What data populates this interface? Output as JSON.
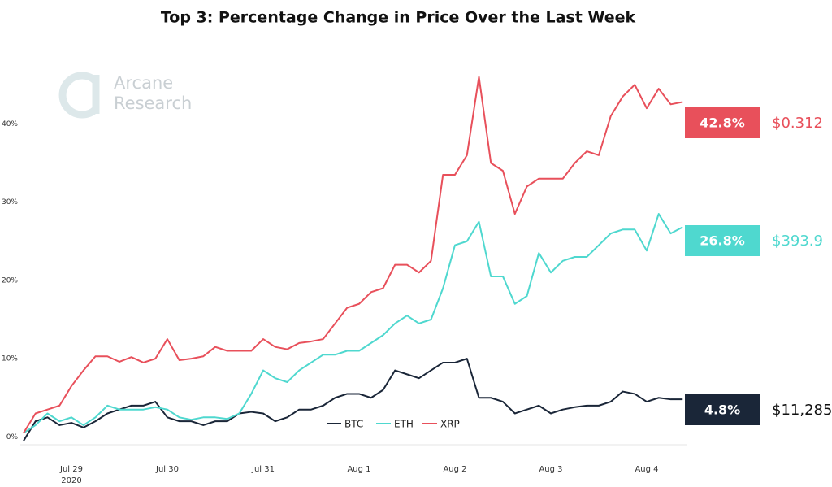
{
  "chart_data": {
    "type": "line",
    "title": "Top 3: Percentage Change in Price Over the Last Week",
    "watermark": [
      "Arcane",
      "Research"
    ],
    "year_label": "2020",
    "categories": [
      null,
      null,
      null,
      null,
      "Jul 29",
      null,
      null,
      null,
      null,
      null,
      null,
      null,
      "Jul 30",
      null,
      null,
      null,
      null,
      null,
      null,
      null,
      "Jul 31",
      null,
      null,
      null,
      null,
      null,
      null,
      null,
      "Aug 1",
      null,
      null,
      null,
      null,
      null,
      null,
      null,
      "Aug 2",
      null,
      null,
      null,
      null,
      null,
      null,
      null,
      "Aug 3",
      null,
      null,
      null,
      null,
      null,
      null,
      null,
      "Aug 4",
      null,
      null,
      null
    ],
    "ylim": [
      -1,
      47
    ],
    "yticks": [
      {
        "value": 0,
        "label": "0%"
      },
      {
        "value": 10,
        "label": "10%"
      },
      {
        "value": 20,
        "label": "20%"
      },
      {
        "value": 30,
        "label": "30%"
      },
      {
        "value": 40,
        "label": "40%"
      }
    ],
    "grid": false,
    "legend": "bottom",
    "series": [
      {
        "name": "BTC",
        "color": "#1a2638",
        "end_label": "4.8%",
        "price": "$11,285",
        "values": [
          -0.5,
          2,
          2.5,
          1.5,
          1.8,
          1.2,
          2,
          3,
          3.5,
          4,
          4,
          4.5,
          2.5,
          2,
          2,
          1.5,
          2,
          2,
          3,
          3.2,
          3,
          2,
          2.5,
          3.5,
          3.5,
          4,
          5,
          5.5,
          5.5,
          5,
          6,
          8.5,
          8,
          7.5,
          8.5,
          9.5,
          9.5,
          10,
          5,
          5,
          4.5,
          3,
          3.5,
          4,
          3,
          3.5,
          3.8,
          4,
          4,
          4.5,
          5.8,
          5.5,
          4.5,
          5,
          4.8,
          4.8
        ]
      },
      {
        "name": "ETH",
        "color": "#4fd8cf",
        "end_label": "26.8%",
        "price": "$393.9",
        "values": [
          0.5,
          1.5,
          3,
          2,
          2.5,
          1.5,
          2.5,
          4,
          3.5,
          3.5,
          3.5,
          3.8,
          3.5,
          2.5,
          2.2,
          2.5,
          2.5,
          2.3,
          3,
          5.5,
          8.5,
          7.5,
          7,
          8.5,
          9.5,
          10.5,
          10.5,
          11,
          11,
          12,
          13,
          14.5,
          15.5,
          14.5,
          15,
          19,
          24.5,
          25,
          27.5,
          20.5,
          20.5,
          17,
          18,
          23.5,
          21,
          22.5,
          23,
          23,
          24.5,
          26,
          26.5,
          26.5,
          23.8,
          28.5,
          26,
          26.8
        ]
      },
      {
        "name": "XRP",
        "color": "#e8505b",
        "end_label": "42.8%",
        "price": "$0.312",
        "values": [
          0.5,
          3,
          3.5,
          4,
          6.5,
          8.5,
          10.3,
          10.3,
          9.6,
          10.2,
          9.5,
          10,
          12.5,
          9.8,
          10,
          10.3,
          11.5,
          11,
          11,
          11,
          12.5,
          11.5,
          11.2,
          12,
          12.2,
          12.5,
          14.5,
          16.5,
          17,
          18.5,
          19,
          22,
          22,
          21,
          22.5,
          33.5,
          33.5,
          36,
          46,
          35,
          34,
          28.5,
          32,
          33,
          33,
          33,
          35,
          36.5,
          36,
          41,
          43.5,
          45,
          42,
          44.5,
          42.5,
          42.8
        ]
      }
    ]
  }
}
